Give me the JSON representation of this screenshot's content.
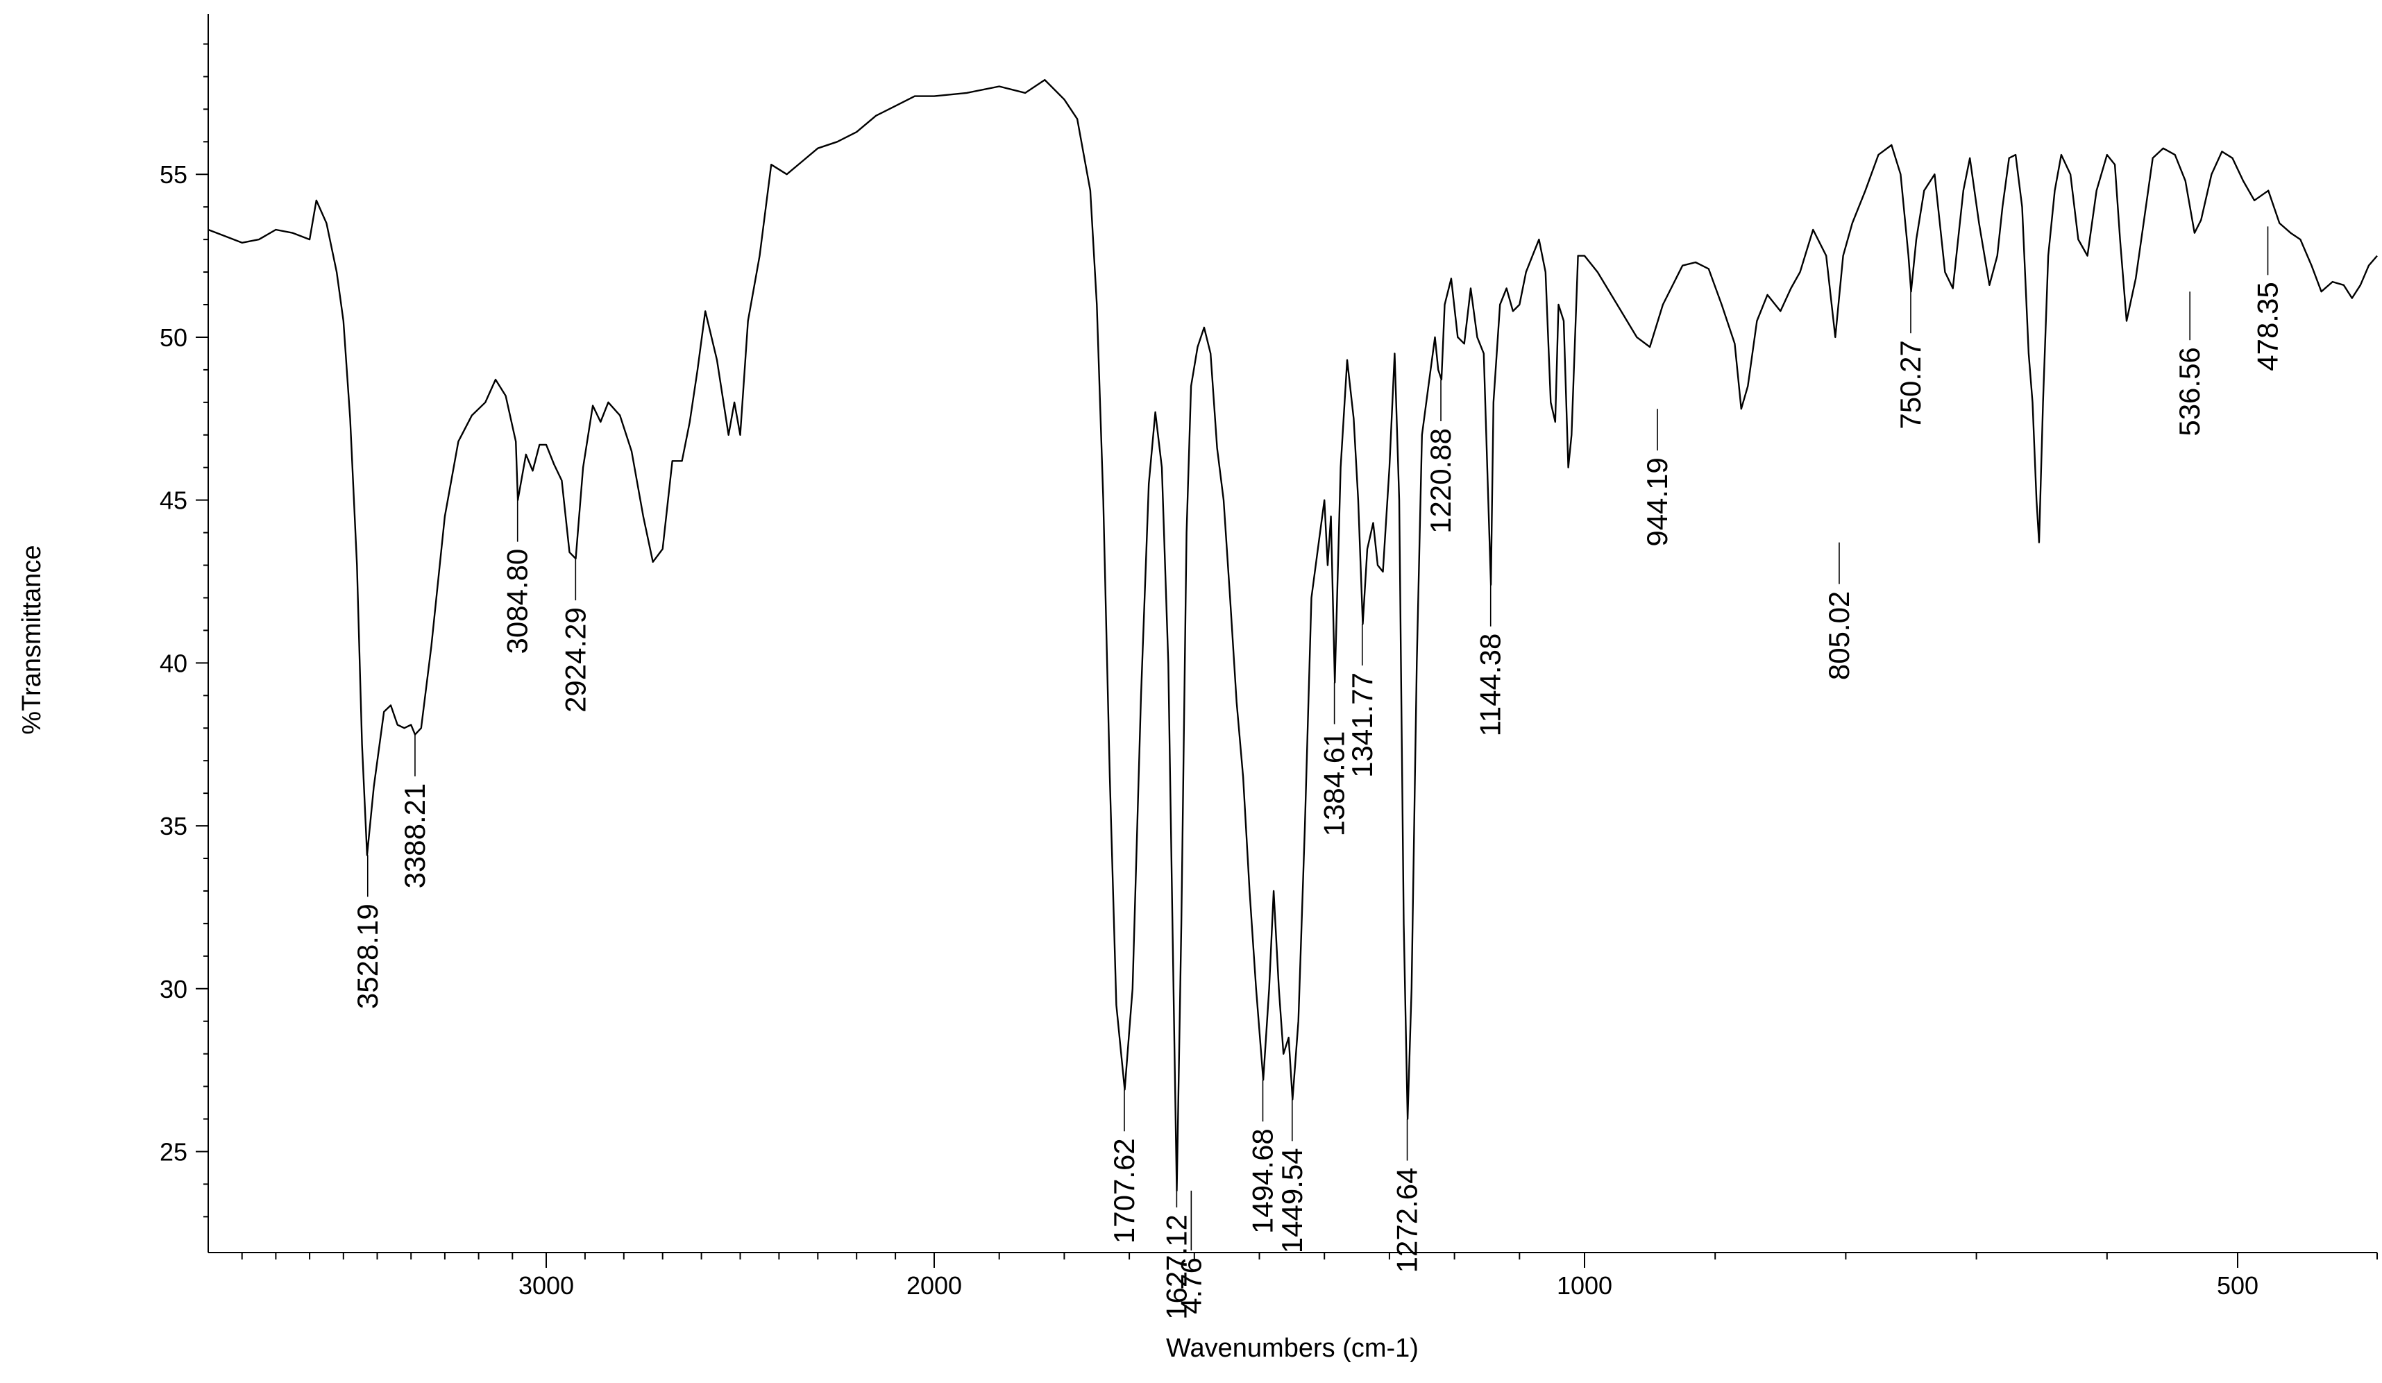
{
  "chart_data": {
    "type": "line",
    "title": "",
    "xlabel": "Wavenumbers (cm-1)",
    "ylabel": "%Transmittance",
    "x_reversed": true,
    "x_scale": "piecewise (high-wavenumber region compressed above 2000 cm-1)",
    "xlim": [
      4000,
      400
    ],
    "ylim": [
      21.9,
      59.5
    ],
    "x_ticks": [
      {
        "value": 3000,
        "label": "3000"
      },
      {
        "value": 2000,
        "label": "2000"
      },
      {
        "value": 1000,
        "label": "1000"
      },
      {
        "value": 500,
        "label": "500"
      }
    ],
    "y_ticks": [
      {
        "value": 25,
        "label": "25"
      },
      {
        "value": 30,
        "label": "30"
      },
      {
        "value": 35,
        "label": "35"
      },
      {
        "value": 40,
        "label": "40"
      },
      {
        "value": 45,
        "label": "45"
      },
      {
        "value": 50,
        "label": "50"
      },
      {
        "value": 55,
        "label": "55"
      }
    ],
    "grid": false,
    "series": [
      {
        "color": "#000000",
        "points": [
          [
            4000,
            53.3
          ],
          [
            3950,
            53.1
          ],
          [
            3900,
            52.9
          ],
          [
            3850,
            53.0
          ],
          [
            3800,
            53.3
          ],
          [
            3750,
            53.2
          ],
          [
            3700,
            53.0
          ],
          [
            3680,
            54.2
          ],
          [
            3650,
            53.5
          ],
          [
            3620,
            52.0
          ],
          [
            3600,
            50.5
          ],
          [
            3580,
            47.5
          ],
          [
            3560,
            43.0
          ],
          [
            3545,
            37.5
          ],
          [
            3530,
            34.1
          ],
          [
            3510,
            36.2
          ],
          [
            3480,
            38.5
          ],
          [
            3460,
            38.7
          ],
          [
            3440,
            38.1
          ],
          [
            3420,
            38.0
          ],
          [
            3400,
            38.1
          ],
          [
            3388,
            37.8
          ],
          [
            3370,
            38.0
          ],
          [
            3340,
            40.5
          ],
          [
            3300,
            44.5
          ],
          [
            3260,
            46.8
          ],
          [
            3220,
            47.6
          ],
          [
            3180,
            48.0
          ],
          [
            3150,
            48.7
          ],
          [
            3120,
            48.2
          ],
          [
            3090,
            46.8
          ],
          [
            3084,
            45.0
          ],
          [
            3060,
            46.4
          ],
          [
            3040,
            45.9
          ],
          [
            3020,
            46.7
          ],
          [
            3000,
            46.7
          ],
          [
            2980,
            46.1
          ],
          [
            2960,
            45.6
          ],
          [
            2940,
            43.4
          ],
          [
            2924,
            43.2
          ],
          [
            2905,
            46.0
          ],
          [
            2880,
            47.9
          ],
          [
            2860,
            47.4
          ],
          [
            2840,
            48.0
          ],
          [
            2810,
            47.6
          ],
          [
            2780,
            46.5
          ],
          [
            2750,
            44.5
          ],
          [
            2725,
            43.1
          ],
          [
            2700,
            43.5
          ],
          [
            2675,
            46.2
          ],
          [
            2650,
            46.2
          ],
          [
            2630,
            47.4
          ],
          [
            2610,
            49.0
          ],
          [
            2590,
            50.8
          ],
          [
            2560,
            49.3
          ],
          [
            2530,
            47.0
          ],
          [
            2515,
            48.0
          ],
          [
            2500,
            47.0
          ],
          [
            2480,
            50.5
          ],
          [
            2450,
            52.5
          ],
          [
            2420,
            55.3
          ],
          [
            2380,
            55.0
          ],
          [
            2340,
            55.4
          ],
          [
            2300,
            55.8
          ],
          [
            2250,
            56.0
          ],
          [
            2200,
            56.3
          ],
          [
            2150,
            56.8
          ],
          [
            2100,
            57.1
          ],
          [
            2050,
            57.4
          ],
          [
            2000,
            57.4
          ],
          [
            1950,
            57.5
          ],
          [
            1900,
            57.7
          ],
          [
            1860,
            57.5
          ],
          [
            1830,
            57.9
          ],
          [
            1800,
            57.3
          ],
          [
            1780,
            56.7
          ],
          [
            1760,
            54.5
          ],
          [
            1750,
            51.0
          ],
          [
            1740,
            45.0
          ],
          [
            1730,
            36.5
          ],
          [
            1720,
            29.5
          ],
          [
            1707,
            26.9
          ],
          [
            1695,
            30.0
          ],
          [
            1682,
            39.0
          ],
          [
            1670,
            45.5
          ],
          [
            1660,
            47.7
          ],
          [
            1650,
            46.0
          ],
          [
            1640,
            40.0
          ],
          [
            1632,
            30.0
          ],
          [
            1627,
            23.8
          ],
          [
            1620,
            32.0
          ],
          [
            1612,
            44.0
          ],
          [
            1605,
            48.5
          ],
          [
            1595,
            49.7
          ],
          [
            1585,
            50.3
          ],
          [
            1575,
            49.5
          ],
          [
            1565,
            46.6
          ],
          [
            1555,
            45.0
          ],
          [
            1545,
            42.0
          ],
          [
            1535,
            38.8
          ],
          [
            1525,
            36.5
          ],
          [
            1515,
            33.0
          ],
          [
            1505,
            30.0
          ],
          [
            1494,
            27.2
          ],
          [
            1485,
            30.0
          ],
          [
            1478,
            33.0
          ],
          [
            1470,
            30.0
          ],
          [
            1463,
            28.0
          ],
          [
            1455,
            28.5
          ],
          [
            1449,
            26.6
          ],
          [
            1440,
            29.0
          ],
          [
            1430,
            35.0
          ],
          [
            1420,
            42.0
          ],
          [
            1410,
            43.5
          ],
          [
            1400,
            45.0
          ],
          [
            1395,
            43.0
          ],
          [
            1390,
            44.5
          ],
          [
            1384,
            39.4
          ],
          [
            1375,
            46.0
          ],
          [
            1365,
            49.3
          ],
          [
            1355,
            47.5
          ],
          [
            1348,
            45.0
          ],
          [
            1341,
            41.2
          ],
          [
            1334,
            43.5
          ],
          [
            1325,
            44.3
          ],
          [
            1318,
            43.0
          ],
          [
            1310,
            42.8
          ],
          [
            1300,
            46.0
          ],
          [
            1292,
            49.5
          ],
          [
            1285,
            45.0
          ],
          [
            1278,
            32.0
          ],
          [
            1272,
            26.0
          ],
          [
            1266,
            30.0
          ],
          [
            1258,
            40.0
          ],
          [
            1250,
            47.0
          ],
          [
            1240,
            48.5
          ],
          [
            1230,
            50.0
          ],
          [
            1225,
            49.0
          ],
          [
            1220,
            48.7
          ],
          [
            1215,
            51.0
          ],
          [
            1205,
            51.8
          ],
          [
            1195,
            50.0
          ],
          [
            1185,
            49.8
          ],
          [
            1175,
            51.5
          ],
          [
            1165,
            50.0
          ],
          [
            1155,
            49.5
          ],
          [
            1148,
            45.0
          ],
          [
            1144,
            42.4
          ],
          [
            1140,
            48.0
          ],
          [
            1130,
            51.0
          ],
          [
            1120,
            51.5
          ],
          [
            1110,
            50.8
          ],
          [
            1100,
            51.0
          ],
          [
            1090,
            52.0
          ],
          [
            1080,
            52.5
          ],
          [
            1070,
            53.0
          ],
          [
            1060,
            52.0
          ],
          [
            1052,
            48.0
          ],
          [
            1045,
            47.4
          ],
          [
            1040,
            51.0
          ],
          [
            1032,
            50.5
          ],
          [
            1025,
            46.0
          ],
          [
            1020,
            47.0
          ],
          [
            1010,
            52.5
          ],
          [
            1000,
            52.5
          ],
          [
            990,
            52.0
          ],
          [
            975,
            51.0
          ],
          [
            960,
            50.0
          ],
          [
            950,
            49.7
          ],
          [
            940,
            51.0
          ],
          [
            925,
            52.2
          ],
          [
            915,
            52.3
          ],
          [
            905,
            52.1
          ],
          [
            895,
            51.0
          ],
          [
            885,
            49.8
          ],
          [
            880,
            47.8
          ],
          [
            875,
            48.5
          ],
          [
            868,
            50.5
          ],
          [
            860,
            51.3
          ],
          [
            850,
            50.8
          ],
          [
            842,
            51.5
          ],
          [
            835,
            52.0
          ],
          [
            825,
            53.3
          ],
          [
            815,
            52.5
          ],
          [
            808,
            50.0
          ],
          [
            802,
            52.5
          ],
          [
            795,
            53.5
          ],
          [
            785,
            54.5
          ],
          [
            775,
            55.6
          ],
          [
            765,
            55.9
          ],
          [
            758,
            55.0
          ],
          [
            752,
            52.5
          ],
          [
            750,
            51.4
          ],
          [
            746,
            53.0
          ],
          [
            740,
            54.5
          ],
          [
            732,
            55.0
          ],
          [
            724,
            52.0
          ],
          [
            718,
            51.5
          ],
          [
            710,
            54.5
          ],
          [
            705,
            55.5
          ],
          [
            698,
            53.5
          ],
          [
            690,
            51.6
          ],
          [
            684,
            52.5
          ],
          [
            680,
            54.0
          ],
          [
            675,
            55.5
          ],
          [
            670,
            55.6
          ],
          [
            665,
            54.0
          ],
          [
            660,
            49.5
          ],
          [
            657,
            48.0
          ],
          [
            654,
            45.0
          ],
          [
            652,
            43.7
          ],
          [
            649,
            48.0
          ],
          [
            645,
            52.5
          ],
          [
            640,
            54.5
          ],
          [
            635,
            55.6
          ],
          [
            628,
            55.0
          ],
          [
            622,
            53.0
          ],
          [
            615,
            52.5
          ],
          [
            608,
            54.5
          ],
          [
            600,
            55.6
          ],
          [
            594,
            55.3
          ],
          [
            590,
            53.0
          ],
          [
            585,
            50.5
          ],
          [
            578,
            51.8
          ],
          [
            572,
            53.5
          ],
          [
            565,
            55.5
          ],
          [
            557,
            55.8
          ],
          [
            548,
            55.6
          ],
          [
            540,
            54.8
          ],
          [
            533,
            53.2
          ],
          [
            528,
            53.6
          ],
          [
            520,
            55.0
          ],
          [
            512,
            55.7
          ],
          [
            504,
            55.5
          ],
          [
            496,
            54.8
          ],
          [
            488,
            54.2
          ],
          [
            478,
            54.5
          ],
          [
            470,
            53.5
          ],
          [
            462,
            53.2
          ],
          [
            455,
            53.0
          ],
          [
            447,
            52.2
          ],
          [
            440,
            51.4
          ],
          [
            432,
            51.7
          ],
          [
            424,
            51.6
          ],
          [
            418,
            51.2
          ],
          [
            412,
            51.6
          ],
          [
            406,
            52.2
          ],
          [
            400,
            52.5
          ]
        ]
      }
    ],
    "annotations": [
      {
        "x": 3528.19,
        "y": 34.1,
        "label": "3528.19"
      },
      {
        "x": 3388.21,
        "y": 37.8,
        "label": "3388.21"
      },
      {
        "x": 3084.8,
        "y": 45.0,
        "label": "3084.80"
      },
      {
        "x": 2924.29,
        "y": 43.2,
        "label": "2924.29"
      },
      {
        "x": 1707.62,
        "y": 26.9,
        "label": "1707.62"
      },
      {
        "x": 1627.12,
        "y": 23.8,
        "label": "1627.12"
      },
      {
        "x": 1494.68,
        "y": 27.2,
        "label": "1494.68"
      },
      {
        "x": 1449.54,
        "y": 26.6,
        "label": "1449.54"
      },
      {
        "x": 1384.61,
        "y": 39.4,
        "label": "1384.61"
      },
      {
        "x": 1341.77,
        "y": 41.2,
        "label": "1341.77"
      },
      {
        "x": 1272.64,
        "y": 26.0,
        "label": "1272.64"
      },
      {
        "x": 1220.88,
        "y": 48.7,
        "label": "1220.88"
      },
      {
        "x": 1144.38,
        "y": 42.4,
        "label": "1144.38"
      },
      {
        "x": 944.19,
        "y": 47.8,
        "label": "944.19"
      },
      {
        "x": 805.02,
        "y": 43.7,
        "label": "805.02"
      },
      {
        "x": 750.27,
        "y": 51.4,
        "label": "750.27"
      },
      {
        "x": 536.56,
        "y": 51.4,
        "label": "536.56"
      },
      {
        "x": 478.35,
        "y": 53.4,
        "label": "478.35"
      },
      {
        "x": 1604.76,
        "y": 23.8,
        "label": "4.76"
      }
    ]
  }
}
